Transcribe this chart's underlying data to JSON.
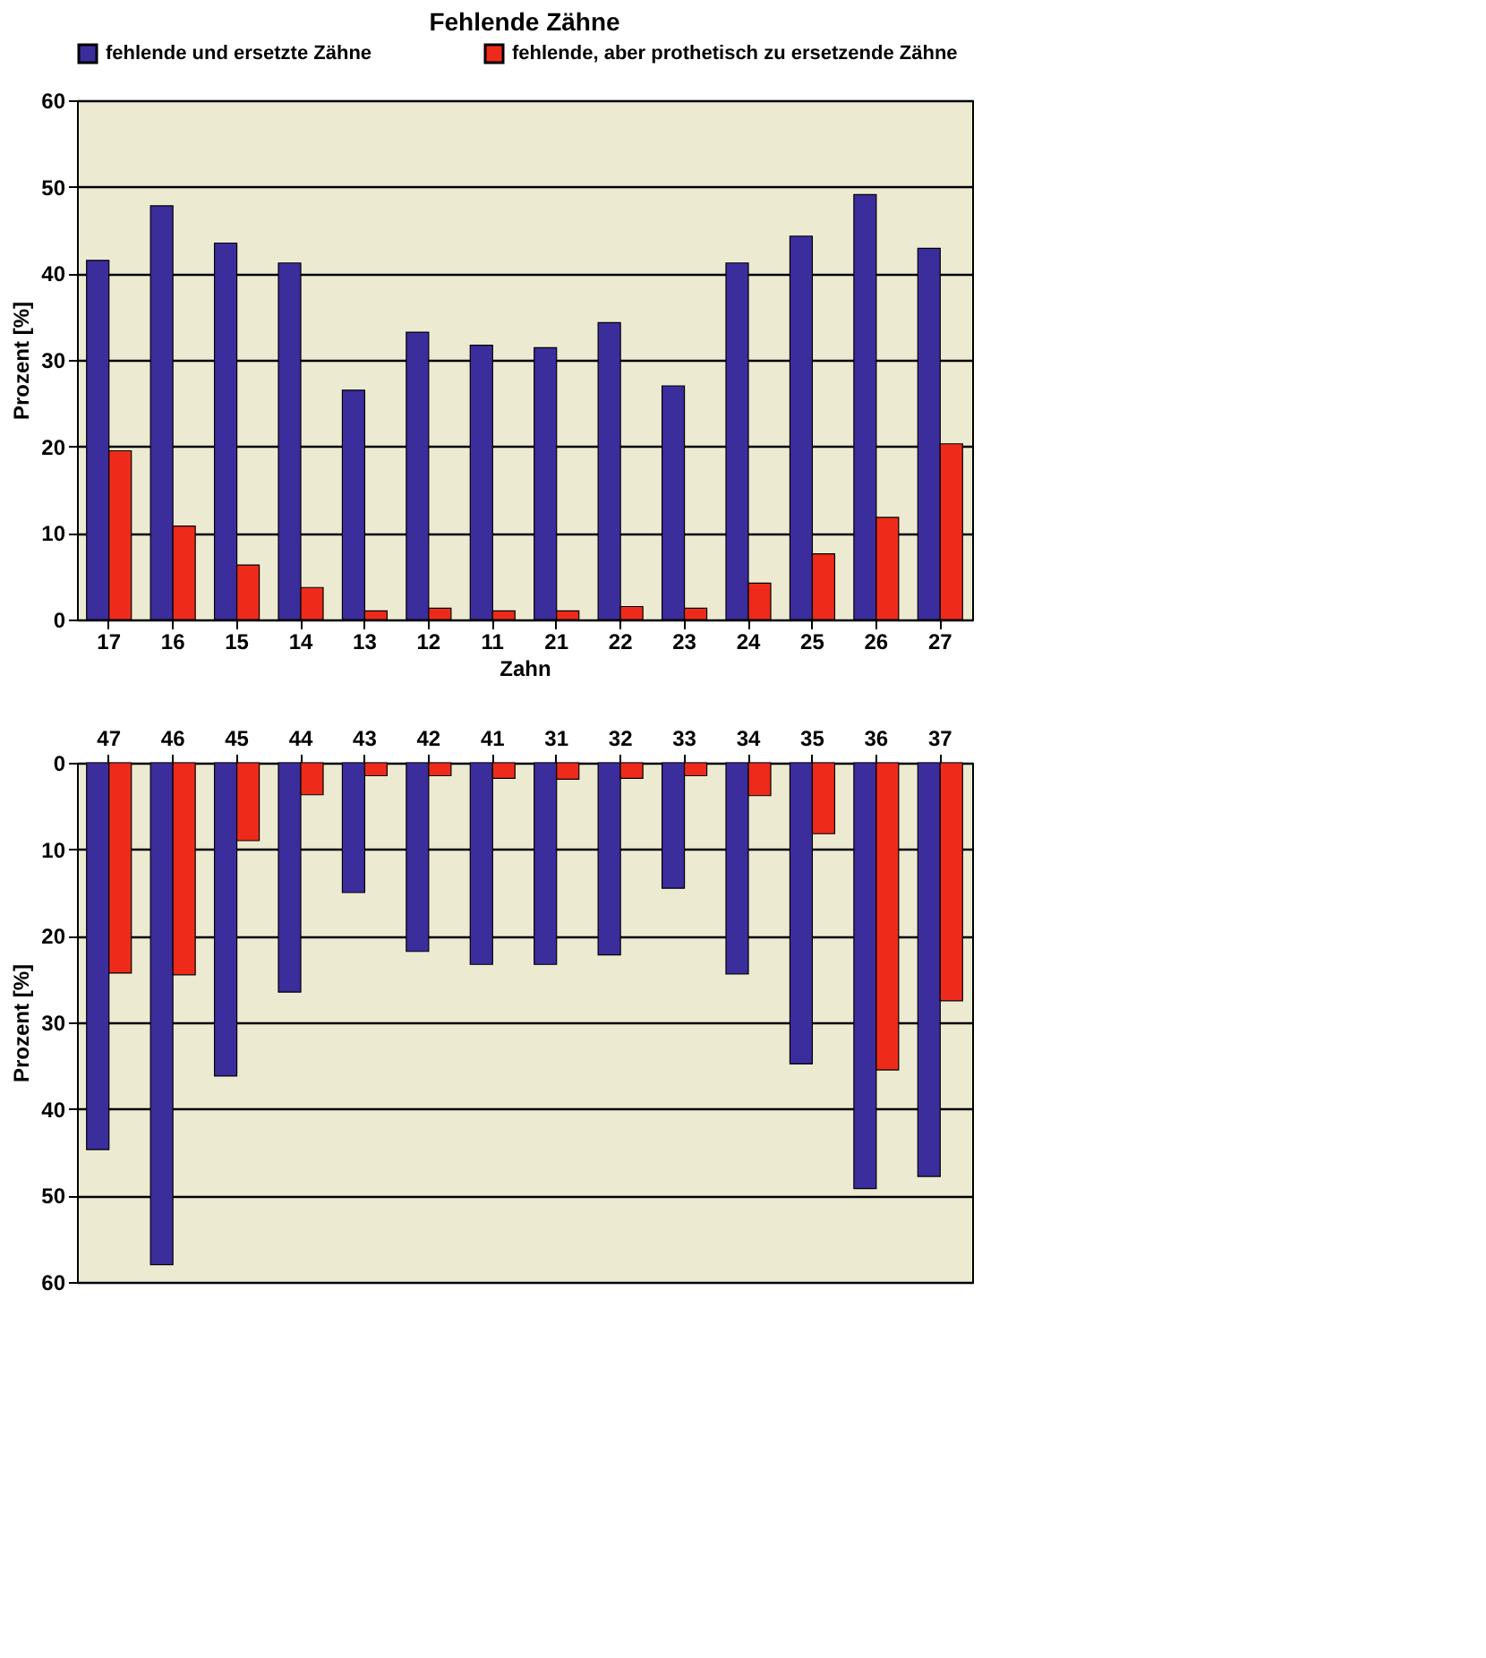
{
  "chart_data": [
    {
      "type": "bar",
      "title": "Fehlende Zähne",
      "ylabel": "Prozent [%]",
      "xlabel": "Zahn",
      "categories": [
        "17",
        "16",
        "15",
        "14",
        "13",
        "12",
        "11",
        "21",
        "22",
        "23",
        "24",
        "25",
        "26",
        "27"
      ],
      "series": [
        {
          "name": "fehlende und ersetzte Zähne",
          "color": "#3b2d9c",
          "values": [
            41.5,
            47.8,
            43.5,
            41.2,
            26.5,
            33.2,
            31.7,
            31.4,
            34.3,
            27.0,
            41.2,
            44.3,
            49.1,
            42.9
          ]
        },
        {
          "name": "fehlende, aber prothetisch zu ersetzende Zähne",
          "color": "#ee2b1b",
          "values": [
            19.5,
            10.8,
            6.3,
            3.7,
            1.0,
            1.3,
            1.0,
            1.0,
            1.5,
            1.3,
            4.2,
            7.6,
            11.8,
            20.3
          ]
        }
      ],
      "ylim": [
        0,
        60
      ],
      "yticks": [
        0,
        10,
        20,
        30,
        40,
        50,
        60
      ],
      "grid": "y",
      "legend": "top"
    },
    {
      "type": "bar",
      "ylabel": "Prozent [%]",
      "categories": [
        "47",
        "46",
        "45",
        "44",
        "43",
        "42",
        "41",
        "31",
        "32",
        "33",
        "34",
        "35",
        "36",
        "37"
      ],
      "series": [
        {
          "color": "#3b2d9c",
          "values": [
            44.7,
            58.0,
            36.2,
            26.5,
            15.0,
            21.8,
            23.3,
            23.3,
            22.2,
            14.5,
            24.4,
            34.8,
            49.2,
            47.8
          ]
        },
        {
          "color": "#ee2b1b",
          "values": [
            24.3,
            24.5,
            9.0,
            3.7,
            1.5,
            1.5,
            1.8,
            1.9,
            1.8,
            1.5,
            3.8,
            8.2,
            35.5,
            27.5
          ]
        }
      ],
      "ylim": [
        60,
        0
      ],
      "yticks": [
        0,
        10,
        20,
        30,
        40,
        50,
        60
      ],
      "grid": "y",
      "legend": false
    }
  ]
}
